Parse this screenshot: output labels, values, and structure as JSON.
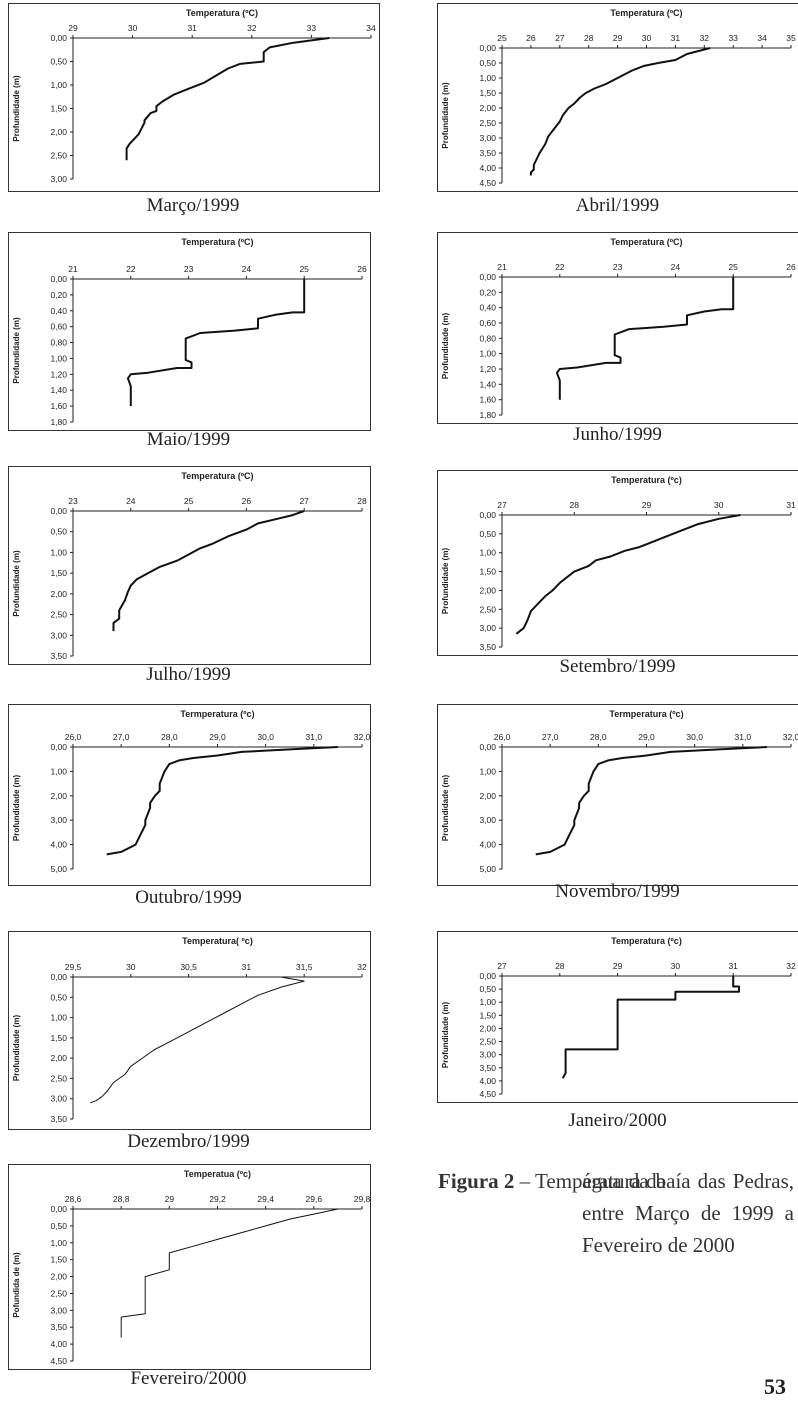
{
  "chart_data": [
    {
      "id": "marco",
      "type": "line",
      "title": "Temperatura (ºC)",
      "ylabel": "Profundidade (m)",
      "caption": "Março/1999",
      "x_ticks": [
        "29",
        "30",
        "31",
        "32",
        "33",
        "34"
      ],
      "x_tick_values": [
        29,
        30,
        31,
        32,
        33,
        34
      ],
      "y_ticks": [
        "0,00",
        "0,50",
        "1,00",
        "1,50",
        "2,00",
        "2,50",
        "3,00"
      ],
      "y_tick_values": [
        0,
        0.5,
        1.0,
        1.5,
        2.0,
        2.5,
        3.0
      ],
      "xlim": [
        29,
        34
      ],
      "ylim": [
        0,
        3.0
      ],
      "series": [
        {
          "x": [
            33.3,
            32.7,
            32.3,
            32.2,
            32.2,
            31.8,
            31.6,
            31.4,
            31.2,
            31.0,
            30.7,
            30.5,
            30.4,
            30.4,
            30.3,
            30.2,
            30.2,
            30.1,
            29.95,
            29.9,
            29.9
          ],
          "y": [
            0.0,
            0.1,
            0.2,
            0.3,
            0.5,
            0.55,
            0.65,
            0.8,
            0.95,
            1.05,
            1.2,
            1.35,
            1.45,
            1.55,
            1.6,
            1.75,
            1.8,
            2.05,
            2.25,
            2.35,
            2.6
          ]
        }
      ]
    },
    {
      "id": "abril",
      "type": "line",
      "title": "Temperatura (ºC)",
      "ylabel": "Profundidade (m)",
      "caption": "Abril/1999",
      "x_ticks": [
        "25",
        "26",
        "27",
        "28",
        "29",
        "30",
        "31",
        "32",
        "33",
        "34",
        "35"
      ],
      "x_tick_values": [
        25,
        26,
        27,
        28,
        29,
        30,
        31,
        32,
        33,
        34,
        35
      ],
      "y_ticks": [
        "0,00",
        "0,50",
        "1,00",
        "1,50",
        "2,00",
        "2,50",
        "3,00",
        "3,50",
        "4,00",
        "4,50"
      ],
      "y_tick_values": [
        0,
        0.5,
        1.0,
        1.5,
        2.0,
        2.5,
        3.0,
        3.5,
        4.0,
        4.5
      ],
      "xlim": [
        25,
        35
      ],
      "ylim": [
        0,
        4.5
      ],
      "series": [
        {
          "x": [
            32.2,
            31.4,
            31.0,
            30.4,
            29.9,
            29.5,
            29.2,
            28.9,
            28.6,
            28.2,
            27.9,
            27.7,
            27.5,
            27.3,
            27.1,
            27.0,
            26.8,
            26.6,
            26.5,
            26.3,
            26.2,
            26.1,
            26.1,
            26.0,
            26.0
          ],
          "y": [
            0.0,
            0.2,
            0.4,
            0.5,
            0.6,
            0.75,
            0.9,
            1.05,
            1.2,
            1.35,
            1.5,
            1.65,
            1.85,
            2.0,
            2.25,
            2.45,
            2.7,
            2.95,
            3.2,
            3.5,
            3.7,
            3.9,
            4.05,
            4.15,
            4.25
          ]
        }
      ]
    },
    {
      "id": "maio",
      "type": "line",
      "title": "Temperatura (ºC)",
      "ylabel": "Profundidade (m)",
      "caption": "Maio/1999",
      "x_ticks": [
        "21",
        "22",
        "23",
        "24",
        "25",
        "26"
      ],
      "x_tick_values": [
        21,
        22,
        23,
        24,
        25,
        26
      ],
      "y_ticks": [
        "0,00",
        "0,20",
        "0,40",
        "0,60",
        "0,80",
        "1,00",
        "1,20",
        "1,40",
        "1,60",
        "1,80"
      ],
      "y_tick_values": [
        0,
        0.2,
        0.4,
        0.6,
        0.8,
        1.0,
        1.2,
        1.4,
        1.6,
        1.8
      ],
      "xlim": [
        21,
        26
      ],
      "ylim": [
        0,
        1.8
      ],
      "series": [
        {
          "x": [
            25.0,
            25.0,
            25.0,
            24.8,
            24.5,
            24.2,
            24.2,
            23.8,
            23.2,
            22.95,
            22.95,
            23.05,
            23.05,
            22.8,
            22.3,
            22.0,
            21.95,
            22.0,
            22.0
          ],
          "y": [
            0.0,
            0.3,
            0.42,
            0.42,
            0.45,
            0.5,
            0.62,
            0.65,
            0.68,
            0.75,
            1.02,
            1.05,
            1.12,
            1.12,
            1.18,
            1.2,
            1.25,
            1.35,
            1.6
          ]
        }
      ]
    },
    {
      "id": "junho",
      "type": "line",
      "title": "Temperatura (ºC)",
      "ylabel": "Profundidade (m)",
      "caption": "Junho/1999",
      "x_ticks": [
        "21",
        "22",
        "23",
        "24",
        "25",
        "26"
      ],
      "x_tick_values": [
        21,
        22,
        23,
        24,
        25,
        26
      ],
      "y_ticks": [
        "0,00",
        "0,20",
        "0,40",
        "0,60",
        "0,80",
        "1,00",
        "1,20",
        "1,40",
        "1,60",
        "1,80"
      ],
      "y_tick_values": [
        0,
        0.2,
        0.4,
        0.6,
        0.8,
        1.0,
        1.2,
        1.4,
        1.6,
        1.8
      ],
      "xlim": [
        21,
        26
      ],
      "ylim": [
        0,
        1.8
      ],
      "series": [
        {
          "x": [
            25.0,
            25.0,
            25.0,
            24.8,
            24.5,
            24.2,
            24.2,
            23.8,
            23.2,
            22.95,
            22.95,
            23.05,
            23.05,
            22.8,
            22.3,
            22.0,
            21.95,
            22.0,
            22.0
          ],
          "y": [
            0.0,
            0.3,
            0.42,
            0.42,
            0.45,
            0.5,
            0.62,
            0.65,
            0.68,
            0.75,
            1.02,
            1.05,
            1.12,
            1.12,
            1.18,
            1.2,
            1.25,
            1.35,
            1.6
          ]
        }
      ]
    },
    {
      "id": "julho",
      "type": "line",
      "title": "Temperatura (ºC)",
      "ylabel": "Profundidade (m)",
      "caption": "Julho/1999",
      "x_ticks": [
        "23",
        "24",
        "25",
        "26",
        "27",
        "28"
      ],
      "x_tick_values": [
        23,
        24,
        25,
        26,
        27,
        28
      ],
      "y_ticks": [
        "0,00",
        "0,50",
        "1,00",
        "1,50",
        "2,00",
        "2,50",
        "3,00",
        "3,50"
      ],
      "y_tick_values": [
        0,
        0.5,
        1.0,
        1.5,
        2.0,
        2.5,
        3.0,
        3.5
      ],
      "xlim": [
        23,
        28
      ],
      "ylim": [
        0,
        3.5
      ],
      "series": [
        {
          "x": [
            27.0,
            26.8,
            26.5,
            26.2,
            26.0,
            25.7,
            25.4,
            25.2,
            25.0,
            24.8,
            24.5,
            24.3,
            24.1,
            24.0,
            23.95,
            23.9,
            23.8,
            23.8,
            23.7,
            23.7
          ],
          "y": [
            0.0,
            0.1,
            0.2,
            0.3,
            0.45,
            0.6,
            0.8,
            0.9,
            1.05,
            1.2,
            1.35,
            1.5,
            1.65,
            1.8,
            1.95,
            2.15,
            2.4,
            2.6,
            2.7,
            2.9
          ]
        }
      ]
    },
    {
      "id": "setembro",
      "type": "line",
      "title": "Temperatura (ºc)",
      "ylabel": "Profundidade (m)",
      "caption": "Setembro/1999",
      "x_ticks": [
        "27",
        "28",
        "29",
        "30",
        "31"
      ],
      "x_tick_values": [
        27,
        28,
        29,
        30,
        31
      ],
      "y_ticks": [
        "0,00",
        "0,50",
        "1,00",
        "1,50",
        "2,00",
        "2,50",
        "3,00",
        "3,50"
      ],
      "y_tick_values": [
        0,
        0.5,
        1.0,
        1.5,
        2.0,
        2.5,
        3.0,
        3.5
      ],
      "xlim": [
        27,
        31
      ],
      "ylim": [
        0,
        3.5
      ],
      "series": [
        {
          "x": [
            30.3,
            30.0,
            29.7,
            29.5,
            29.3,
            29.1,
            28.9,
            28.7,
            28.5,
            28.3,
            28.2,
            28.0,
            27.9,
            27.8,
            27.7,
            27.6,
            27.5,
            27.4,
            27.35,
            27.3,
            27.2
          ],
          "y": [
            0.0,
            0.1,
            0.25,
            0.4,
            0.55,
            0.7,
            0.85,
            0.95,
            1.1,
            1.2,
            1.35,
            1.5,
            1.65,
            1.8,
            2.0,
            2.15,
            2.35,
            2.55,
            2.8,
            3.0,
            3.15
          ]
        }
      ]
    },
    {
      "id": "outubro",
      "type": "line",
      "title": "Termperatura (ºc)",
      "ylabel": "Profundidade (m)",
      "caption": "Outubro/1999",
      "x_ticks": [
        "26,0",
        "27,0",
        "28,0",
        "29,0",
        "30,0",
        "31,0",
        "32,0"
      ],
      "x_tick_values": [
        26,
        27,
        28,
        29,
        30,
        31,
        32
      ],
      "y_ticks": [
        "0,00",
        "1,00",
        "2,00",
        "3,00",
        "4,00",
        "5,00"
      ],
      "y_tick_values": [
        0,
        1,
        2,
        3,
        4,
        5
      ],
      "xlim": [
        26,
        32
      ],
      "ylim": [
        0,
        5
      ],
      "series": [
        {
          "x": [
            31.5,
            30.5,
            29.5,
            29.0,
            28.5,
            28.2,
            28.0,
            27.9,
            27.8,
            27.8,
            27.7,
            27.6,
            27.6,
            27.5,
            27.5,
            27.4,
            27.3,
            27.0,
            26.7
          ],
          "y": [
            0.0,
            0.1,
            0.2,
            0.35,
            0.45,
            0.55,
            0.7,
            1.0,
            1.5,
            1.8,
            2.0,
            2.3,
            2.5,
            3.0,
            3.2,
            3.6,
            4.0,
            4.3,
            4.4
          ]
        }
      ]
    },
    {
      "id": "novembro",
      "type": "line",
      "title": "Termperatura (ºc)",
      "ylabel": "Profundidade (m)",
      "caption": "Novembro/1999",
      "x_ticks": [
        "26,0",
        "27,0",
        "28,0",
        "29,0",
        "30,0",
        "31,0",
        "32,0"
      ],
      "x_tick_values": [
        26,
        27,
        28,
        29,
        30,
        31,
        32
      ],
      "y_ticks": [
        "0,00",
        "1,00",
        "2,00",
        "3,00",
        "4,00",
        "5,00"
      ],
      "y_tick_values": [
        0,
        1,
        2,
        3,
        4,
        5
      ],
      "xlim": [
        26,
        32
      ],
      "ylim": [
        0,
        5
      ],
      "series": [
        {
          "x": [
            31.5,
            30.5,
            29.5,
            29.0,
            28.5,
            28.2,
            28.0,
            27.9,
            27.8,
            27.8,
            27.7,
            27.6,
            27.6,
            27.5,
            27.5,
            27.4,
            27.3,
            27.0,
            26.7
          ],
          "y": [
            0.0,
            0.1,
            0.2,
            0.35,
            0.45,
            0.55,
            0.7,
            1.0,
            1.5,
            1.8,
            2.0,
            2.3,
            2.5,
            3.0,
            3.2,
            3.6,
            4.0,
            4.3,
            4.4
          ]
        }
      ]
    },
    {
      "id": "dezembro",
      "type": "line",
      "title": "Temperatura( ºc)",
      "ylabel": "Profundidade (m)",
      "caption": "Dezembro/1999",
      "x_ticks": [
        "29,5",
        "30",
        "30,5",
        "31",
        "31,5",
        "32"
      ],
      "x_tick_values": [
        29.5,
        30,
        30.5,
        31,
        31.5,
        32
      ],
      "y_ticks": [
        "0,00",
        "0,50",
        "1,00",
        "1,50",
        "2,00",
        "2,50",
        "3,00",
        "3,50"
      ],
      "y_tick_values": [
        0,
        0.5,
        1.0,
        1.5,
        2.0,
        2.5,
        3.0,
        3.5
      ],
      "xlim": [
        29.5,
        32
      ],
      "ylim": [
        0,
        3.5
      ],
      "series": [
        {
          "x": [
            31.3,
            31.5,
            31.3,
            31.1,
            31.0,
            30.9,
            30.8,
            30.7,
            30.6,
            30.5,
            30.4,
            30.3,
            30.2,
            30.1,
            30.0,
            29.95,
            29.85,
            29.8,
            29.75,
            29.7,
            29.65
          ],
          "y": [
            0.0,
            0.1,
            0.25,
            0.45,
            0.6,
            0.75,
            0.9,
            1.05,
            1.2,
            1.35,
            1.5,
            1.65,
            1.8,
            2.0,
            2.2,
            2.4,
            2.6,
            2.8,
            2.95,
            3.05,
            3.1
          ]
        }
      ]
    },
    {
      "id": "janeiro",
      "type": "line",
      "title": "Temperatura (ºc)",
      "ylabel": "Profundidade (m)",
      "caption": "Janeiro/2000",
      "x_ticks": [
        "27",
        "28",
        "29",
        "30",
        "31",
        "32"
      ],
      "x_tick_values": [
        27,
        28,
        29,
        30,
        31,
        32
      ],
      "y_ticks": [
        "0,00",
        "0,50",
        "1,00",
        "1,50",
        "2,00",
        "2,50",
        "3,00",
        "3,50",
        "4,00",
        "4,50"
      ],
      "y_tick_values": [
        0,
        0.5,
        1.0,
        1.5,
        2.0,
        2.5,
        3.0,
        3.5,
        4.0,
        4.5
      ],
      "xlim": [
        27,
        32
      ],
      "ylim": [
        0,
        4.5
      ],
      "series": [
        {
          "x": [
            31.0,
            31.0,
            31.1,
            31.1,
            30.0,
            30.0,
            29.0,
            29.0,
            29.0,
            28.1,
            28.1,
            28.05
          ],
          "y": [
            0.0,
            0.4,
            0.4,
            0.6,
            0.6,
            0.9,
            0.9,
            1.3,
            2.8,
            2.8,
            3.7,
            3.9
          ]
        }
      ]
    },
    {
      "id": "fevereiro",
      "type": "line",
      "title": "Temperatua (ºc)",
      "ylabel": "Pofundida de (m)",
      "caption": "Fevereiro/2000",
      "x_ticks": [
        "28,6",
        "28,8",
        "29",
        "29,2",
        "29,4",
        "29,6",
        "29,8"
      ],
      "x_tick_values": [
        28.6,
        28.8,
        29.0,
        29.2,
        29.4,
        29.6,
        29.8
      ],
      "y_ticks": [
        "0,00",
        "0,50",
        "1,00",
        "1,50",
        "2,00",
        "2,50",
        "3,00",
        "3,50",
        "4,00",
        "4,50"
      ],
      "y_tick_values": [
        0,
        0.5,
        1.0,
        1.5,
        2.0,
        2.5,
        3.0,
        3.5,
        4.0,
        4.5
      ],
      "xlim": [
        28.6,
        29.8
      ],
      "ylim": [
        0,
        4.5
      ],
      "series": [
        {
          "x": [
            29.7,
            29.6,
            29.5,
            29.4,
            29.3,
            29.2,
            29.1,
            29.0,
            29.0,
            28.9,
            28.9,
            28.8,
            28.8
          ],
          "y": [
            0.0,
            0.15,
            0.3,
            0.5,
            0.7,
            0.9,
            1.1,
            1.3,
            1.8,
            2.0,
            3.1,
            3.2,
            3.8
          ]
        }
      ]
    }
  ],
  "figure_caption": {
    "label": "Figura 2",
    "text_first": " – Temperatura da",
    "text_rest": "água da baía das Pedras, entre Março de 1999 a Fevereiro de 2000"
  },
  "page_number": "53"
}
